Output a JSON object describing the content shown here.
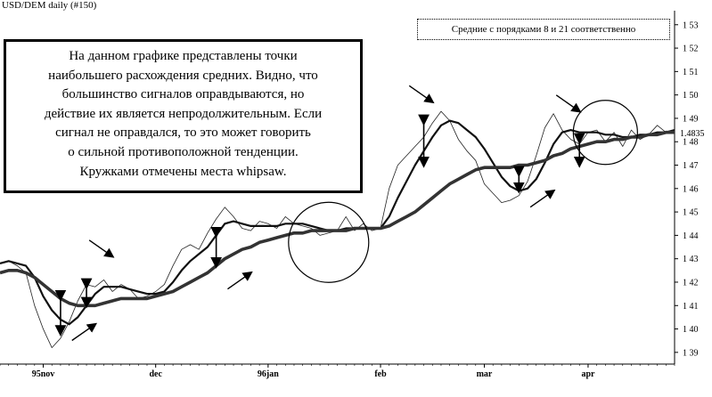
{
  "header": {
    "title": "USD/DEM  daily  (#150)"
  },
  "legend": {
    "text": "Средние с порядками 8 и 21 соответственно"
  },
  "note": {
    "lines": [
      "На данном графике представлены точки",
      "наибольшего расхождения средних. Видно, что",
      "большинство сигналов оправдываются, но",
      "действие их является непродолжительным. Если",
      "сигнал не оправдался, то это может говорить",
      "о сильной противоположной тенденции.",
      "Кружками отмечены места whipsaw."
    ]
  },
  "chart_data": {
    "type": "line",
    "title": "USD/DEM  daily  (#150)",
    "xlabel": "",
    "ylabel": "",
    "x_ticks": [
      "95nov",
      "dec",
      "96jan",
      "feb",
      "mar",
      "apr"
    ],
    "y_ticks": [
      "1 53",
      "1 52",
      "1 51",
      "1 50",
      "1 49",
      "1 48",
      "1 47",
      "1 46",
      "1 45",
      "1 44",
      "1 43",
      "1 42",
      "1 41",
      "1 40",
      "1 39"
    ],
    "ylim": [
      1.385,
      1.536
    ],
    "last_price_label": "1.4835",
    "series": [
      {
        "name": "",
        "style": "thin",
        "values": [
          1.428,
          1.429,
          1.427,
          1.424,
          1.41,
          1.4,
          1.392,
          1.396,
          1.403,
          1.412,
          1.419,
          1.418,
          1.421,
          1.416,
          1.419,
          1.417,
          1.413,
          1.414,
          1.416,
          1.419,
          1.427,
          1.434,
          1.436,
          1.434,
          1.441,
          1.447,
          1.452,
          1.448,
          1.443,
          1.442,
          1.446,
          1.445,
          1.443,
          1.448,
          1.445,
          1.444,
          1.443,
          1.44,
          1.441,
          1.442,
          1.448,
          1.442,
          1.445,
          1.442,
          1.443,
          1.46,
          1.47,
          1.474,
          1.478,
          1.482,
          1.488,
          1.493,
          1.489,
          1.481,
          1.476,
          1.472,
          1.462,
          1.458,
          1.454,
          1.455,
          1.457,
          1.463,
          1.474,
          1.486,
          1.492,
          1.485,
          1.481,
          1.479,
          1.484,
          1.485,
          1.48,
          1.484,
          1.478,
          1.485,
          1.481,
          1.483,
          1.487,
          1.484,
          1.485
        ]
      },
      {
        "name": "",
        "style": "medium",
        "values": [
          1.428,
          1.429,
          1.428,
          1.427,
          1.422,
          1.414,
          1.408,
          1.404,
          1.402,
          1.405,
          1.41,
          1.415,
          1.418,
          1.418,
          1.418,
          1.417,
          1.416,
          1.415,
          1.415,
          1.416,
          1.42,
          1.425,
          1.429,
          1.432,
          1.435,
          1.44,
          1.445,
          1.446,
          1.445,
          1.444,
          1.444,
          1.444,
          1.444,
          1.445,
          1.445,
          1.445,
          1.444,
          1.443,
          1.442,
          1.442,
          1.443,
          1.443,
          1.443,
          1.443,
          1.443,
          1.448,
          1.456,
          1.463,
          1.47,
          1.476,
          1.482,
          1.487,
          1.489,
          1.488,
          1.485,
          1.482,
          1.477,
          1.471,
          1.465,
          1.461,
          1.459,
          1.46,
          1.464,
          1.471,
          1.479,
          1.484,
          1.485,
          1.484,
          1.484,
          1.484,
          1.483,
          1.483,
          1.482,
          1.482,
          1.483,
          1.483,
          1.484,
          1.484,
          1.485
        ]
      },
      {
        "name": "",
        "style": "thick",
        "values": [
          1.424,
          1.425,
          1.425,
          1.424,
          1.422,
          1.419,
          1.416,
          1.413,
          1.411,
          1.41,
          1.41,
          1.41,
          1.411,
          1.412,
          1.413,
          1.413,
          1.413,
          1.413,
          1.414,
          1.415,
          1.416,
          1.418,
          1.42,
          1.422,
          1.424,
          1.427,
          1.43,
          1.432,
          1.434,
          1.435,
          1.437,
          1.438,
          1.439,
          1.44,
          1.441,
          1.441,
          1.442,
          1.442,
          1.442,
          1.442,
          1.442,
          1.443,
          1.443,
          1.443,
          1.443,
          1.444,
          1.446,
          1.448,
          1.45,
          1.453,
          1.456,
          1.459,
          1.462,
          1.464,
          1.466,
          1.468,
          1.469,
          1.469,
          1.469,
          1.469,
          1.47,
          1.47,
          1.471,
          1.472,
          1.474,
          1.475,
          1.477,
          1.478,
          1.479,
          1.48,
          1.48,
          1.481,
          1.481,
          1.482,
          1.482,
          1.483,
          1.483,
          1.484,
          1.484
        ]
      }
    ],
    "whipsaw_circles": [
      {
        "index": 38,
        "value": 1.437
      },
      {
        "index": 70,
        "value": 1.484
      }
    ],
    "divergence_markers": [
      {
        "index": 7,
        "from": 1.413,
        "to": 1.398
      },
      {
        "index": 10,
        "from": 1.418,
        "to": 1.41
      },
      {
        "index": 25,
        "from": 1.44,
        "to": 1.427
      },
      {
        "index": 49,
        "from": 1.488,
        "to": 1.47
      },
      {
        "index": 60,
        "from": 1.466,
        "to": 1.459
      },
      {
        "index": 67,
        "from": 1.48,
        "to": 1.47
      }
    ],
    "signal_arrows": [
      {
        "index": 13,
        "value": 1.431,
        "direction": "down"
      },
      {
        "index": 29,
        "value": 1.424,
        "direction": "up"
      },
      {
        "index": 50,
        "value": 1.497,
        "direction": "down"
      },
      {
        "index": 64,
        "value": 1.459,
        "direction": "up"
      },
      {
        "index": 67,
        "value": 1.493,
        "direction": "down"
      },
      {
        "index": 11,
        "value": 1.402,
        "direction": "up"
      }
    ]
  }
}
